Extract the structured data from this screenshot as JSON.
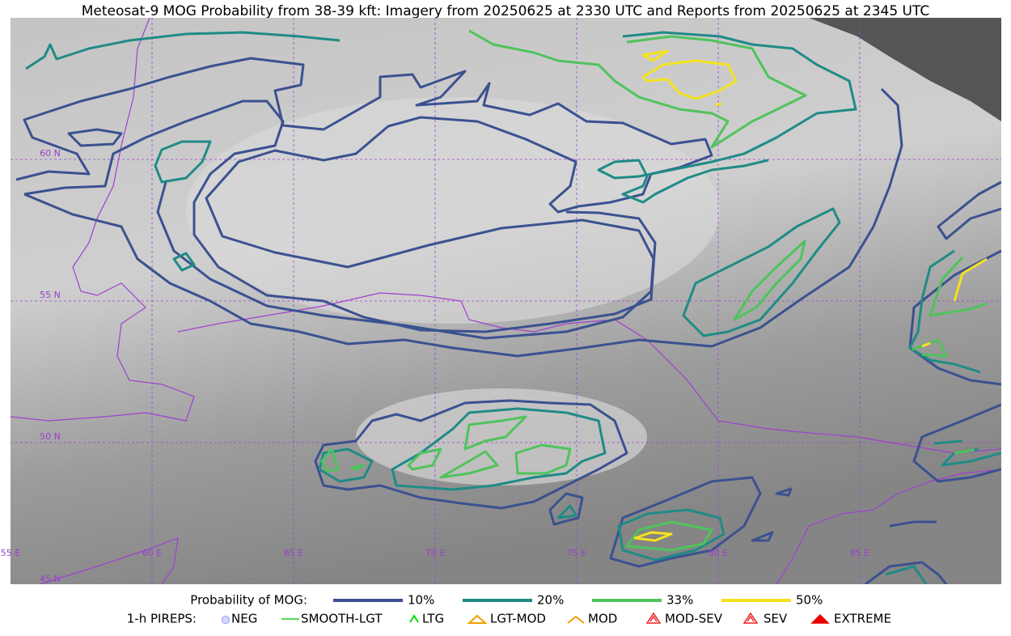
{
  "title": "Meteosat-9 MOG Probability from 38-39 kft: Imagery from 20250625 at 2330 UTC and Reports from 20250625 at 2345 UTC",
  "map": {
    "lon_labels": [
      "55 E",
      "60 E",
      "65 E",
      "70 E",
      "75 E",
      "80 E",
      "85 E"
    ],
    "lat_labels": [
      "60 N",
      "55 N",
      "50 N",
      "45 N"
    ]
  },
  "legend": {
    "probability": {
      "label": "Probability of MOG:",
      "items": [
        {
          "name": "10%",
          "color": "#3b5190"
        },
        {
          "name": "20%",
          "color": "#1f8b86"
        },
        {
          "name": "33%",
          "color": "#4fc35c"
        },
        {
          "name": "50%",
          "color": "#f5e21e"
        }
      ]
    },
    "pireps": {
      "label": "1-h PIREPS:",
      "items": [
        "NEG",
        "SMOOTH-LGT",
        "LTG",
        "LGT-MOD",
        "MOD",
        "MOD-SEV",
        "SEV",
        "EXTREME"
      ]
    }
  }
}
